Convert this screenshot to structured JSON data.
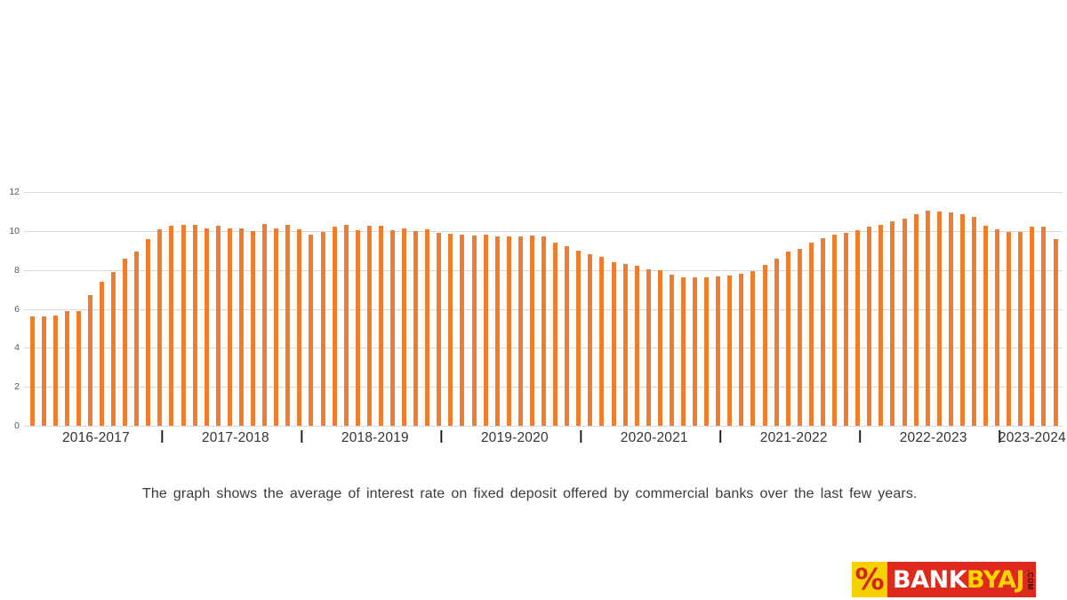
{
  "caption": "The graph shows the average of interest rate on fixed deposit offered by commercial banks over the last few years.",
  "logo": {
    "icon": "percent",
    "icon_glyph": "%",
    "brand_primary": "BANK",
    "brand_secondary": "BYAJ",
    "brand_suffix": ".COM",
    "colors": {
      "icon_bg": "#f5d102",
      "icon_fg": "#d22418",
      "text_bg": "#dd2a1d",
      "primary_fg": "#ffffff",
      "secondary_fg": "#ffd400"
    }
  },
  "chart_data": {
    "type": "bar",
    "title": "",
    "xlabel": "",
    "ylabel": "",
    "ylim": [
      0,
      12
    ],
    "ytick_labels": [
      "0",
      "2",
      "4",
      "6",
      "8",
      "10",
      "12"
    ],
    "grid": true,
    "legend": false,
    "bar_color": "#ed7d31",
    "grid_color": "#d9d9d9",
    "categories": [
      "2016-2017",
      "2017-2018",
      "2018-2019",
      "2019-2020",
      "2020-2021",
      "2021-2022",
      "2022-2023",
      "2023-2024"
    ],
    "separator_glyph": "|",
    "groups": [
      {
        "label": "2016-2017",
        "values": [
          5.6,
          5.6,
          5.65,
          5.9,
          5.9,
          6.7,
          7.4,
          7.9,
          8.6,
          8.95,
          9.6,
          10.1
        ]
      },
      {
        "label": "2017-2018",
        "values": [
          10.25,
          10.3,
          10.3,
          10.15,
          10.25,
          10.15,
          10.15,
          10.0,
          10.35,
          10.15,
          10.3,
          10.1
        ]
      },
      {
        "label": "2018-2019",
        "values": [
          9.8,
          9.95,
          10.2,
          10.3,
          10.05,
          10.25,
          10.25,
          10.05,
          10.15,
          10.0,
          10.1,
          9.9
        ]
      },
      {
        "label": "2019-2020",
        "values": [
          9.85,
          9.8,
          9.75,
          9.8,
          9.7,
          9.7,
          9.7,
          9.75,
          9.7,
          9.4,
          9.2,
          9.0
        ]
      },
      {
        "label": "2020-2021",
        "values": [
          8.8,
          8.65,
          8.4,
          8.3,
          8.2,
          8.05,
          8.0,
          7.75,
          7.6,
          7.6,
          7.6,
          7.65
        ]
      },
      {
        "label": "2021-2022",
        "values": [
          7.7,
          7.8,
          7.95,
          8.25,
          8.6,
          8.95,
          9.1,
          9.4,
          9.65,
          9.8,
          9.9,
          10.05
        ]
      },
      {
        "label": "2022-2023",
        "values": [
          10.2,
          10.3,
          10.5,
          10.65,
          10.85,
          11.05,
          11.0,
          10.95,
          10.85,
          10.7,
          10.25,
          10.1
        ]
      },
      {
        "label": "2023-2024",
        "values": [
          9.95,
          9.95,
          10.2,
          10.2,
          9.6
        ]
      }
    ]
  }
}
